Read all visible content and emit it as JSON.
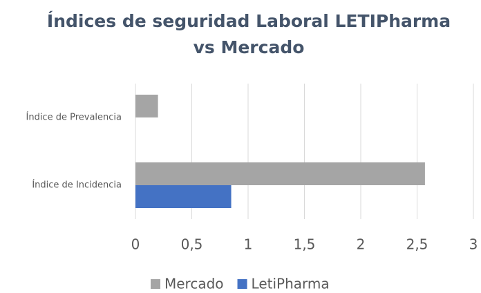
{
  "chart_data": {
    "type": "hbar",
    "title": "Índices de seguridad Laboral LETIPharma vs Mercado",
    "categories": [
      "Índice de Prevalencia",
      "Índice de Incidencia"
    ],
    "series": [
      {
        "name": "Mercado",
        "color": "#a5a5a5",
        "values": [
          0.2,
          2.57
        ]
      },
      {
        "name": "LetiPharma",
        "color": "#4472c4",
        "values": [
          0,
          0.85
        ]
      }
    ],
    "xlim": [
      0,
      3
    ],
    "xticks": [
      0,
      {
        "value": 0.5,
        "label": "0,5"
      },
      1,
      {
        "value": 1.5,
        "label": "1,5"
      },
      2,
      {
        "value": 2.5,
        "label": "2,5"
      },
      3
    ],
    "grid": true,
    "legend": "bottom"
  }
}
